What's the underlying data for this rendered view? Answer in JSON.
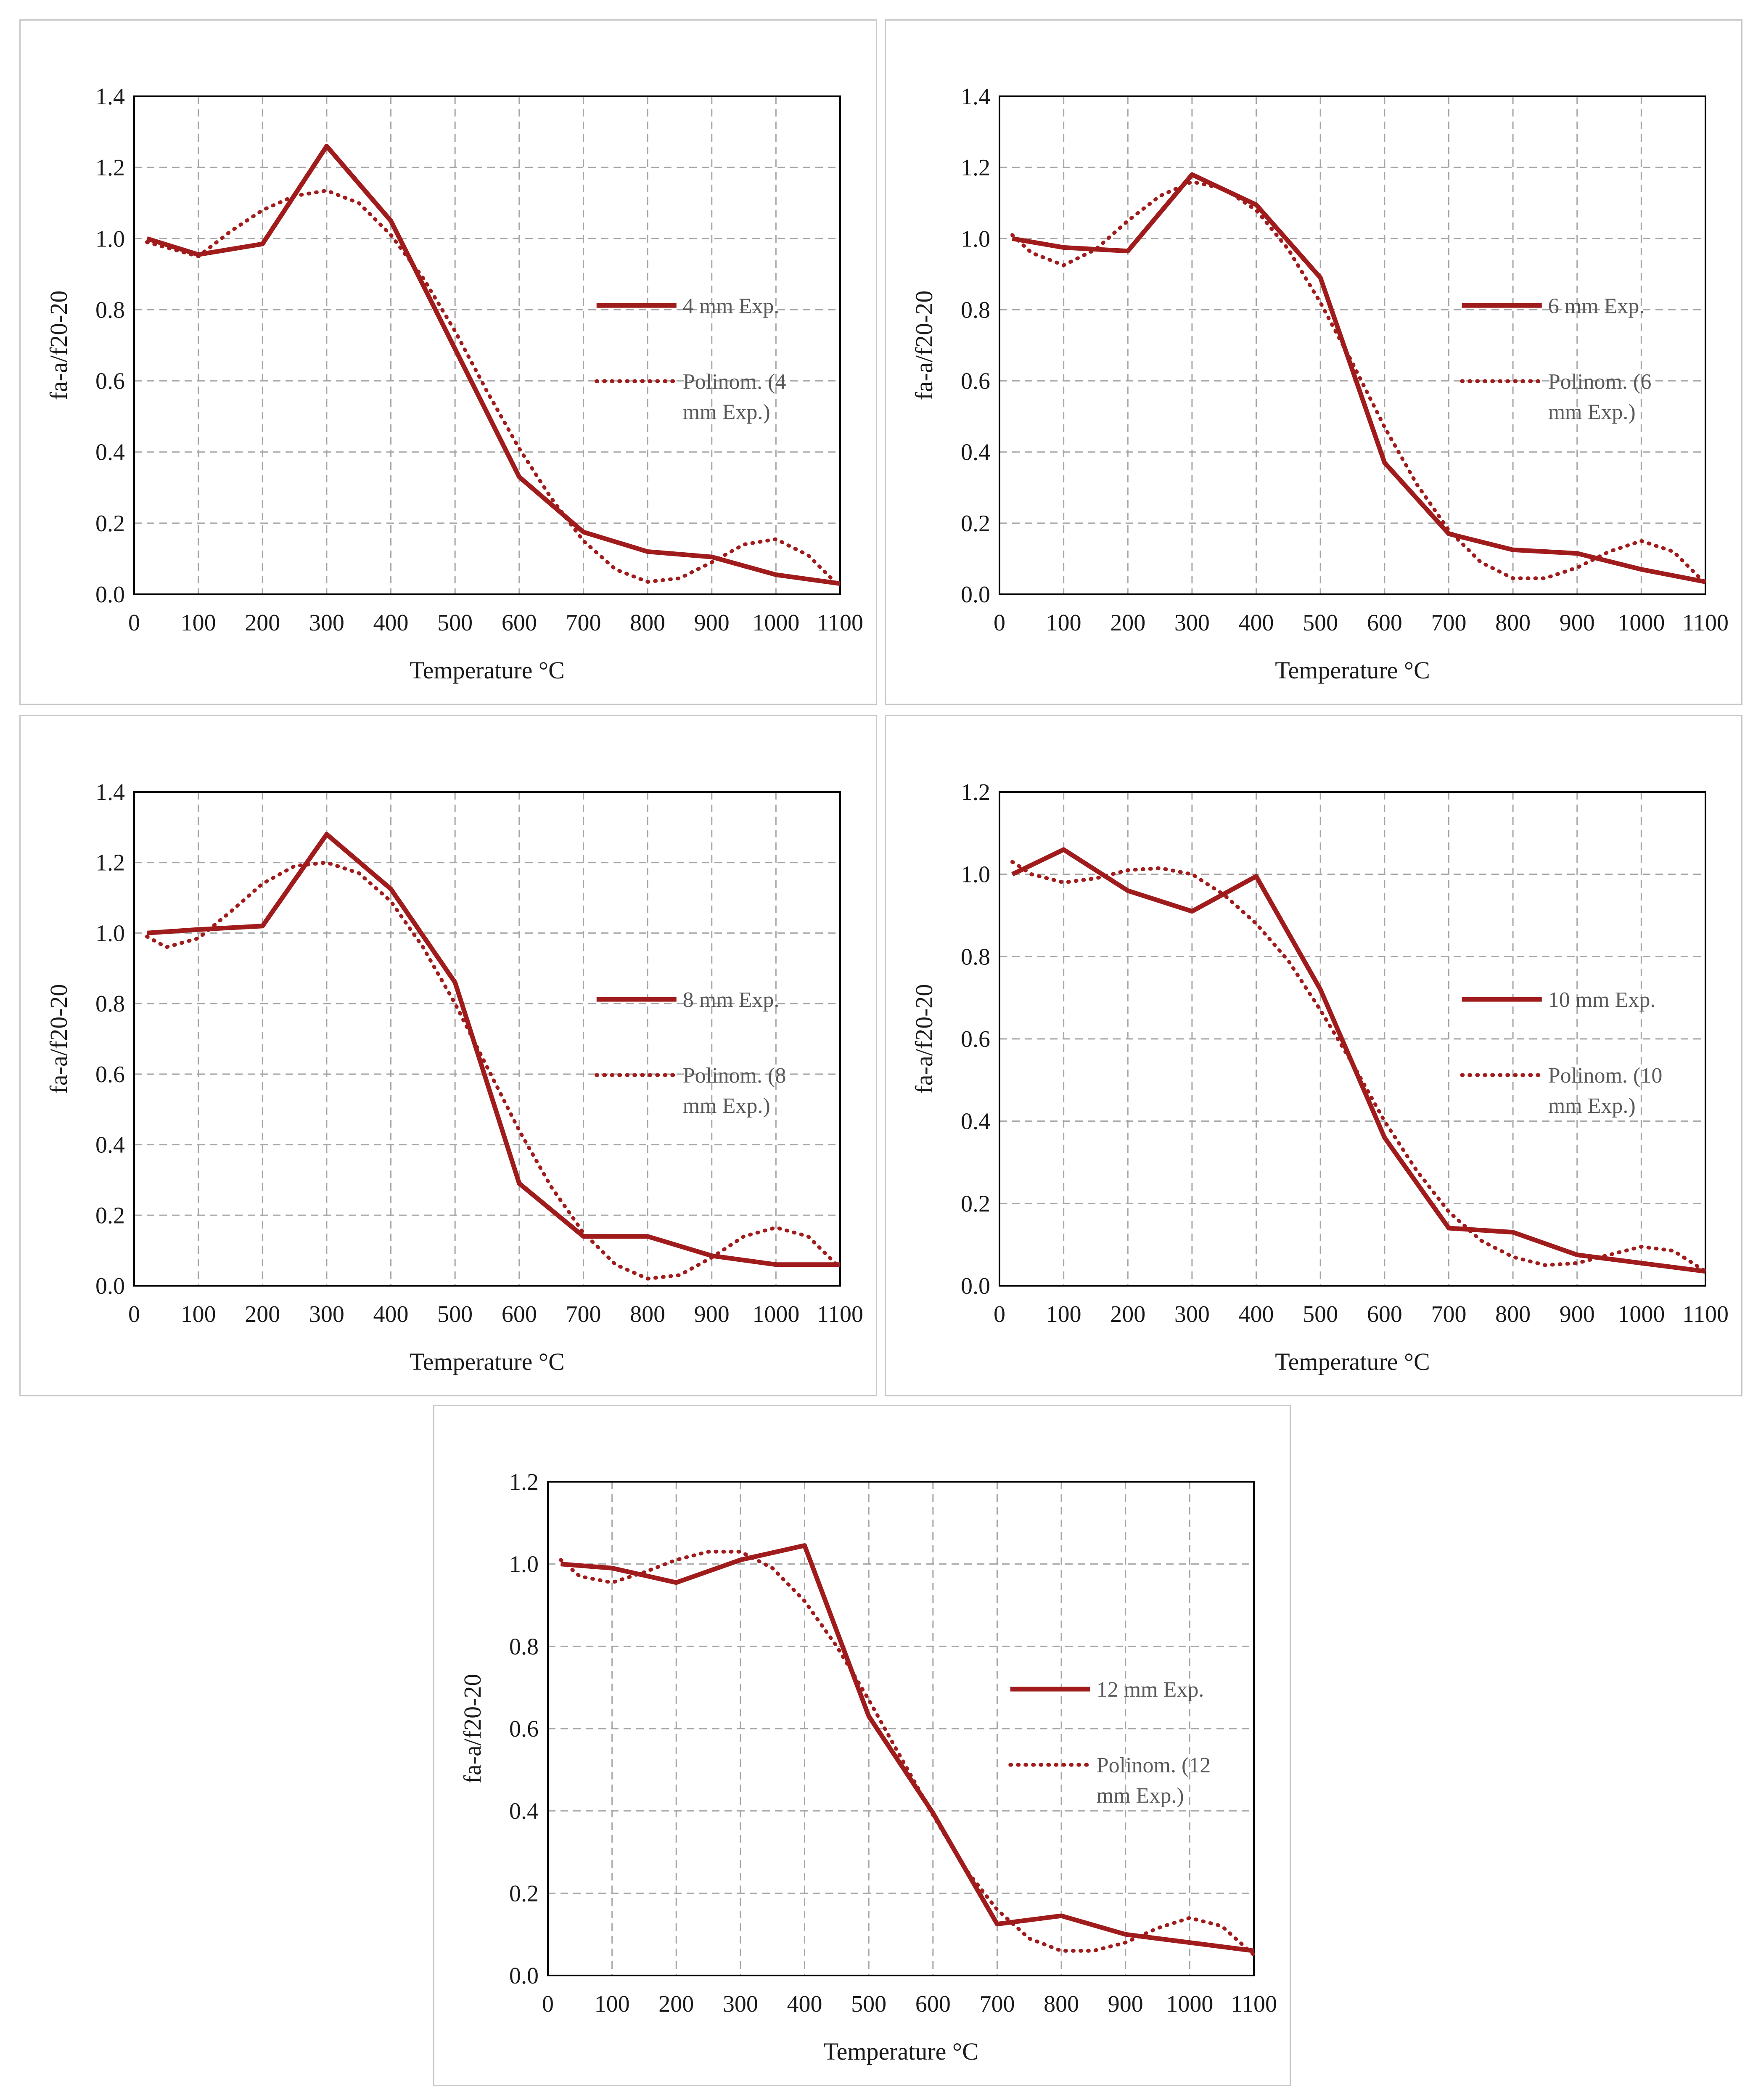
{
  "colors": {
    "series": "#a01c1c",
    "grid": "#a6a6a6",
    "axis": "#000000",
    "text": "#1a1a1a",
    "legend": "#595959"
  },
  "chart_data": [
    {
      "type": "line",
      "xlabel": "Temperature °C",
      "ylabel": "fa-a/f20-20",
      "xlim": [
        0,
        1100
      ],
      "ylim": [
        0,
        1.4
      ],
      "xticks": [
        "0",
        "100",
        "200",
        "300",
        "400",
        "500",
        "600",
        "700",
        "800",
        "900",
        "1000",
        "1100"
      ],
      "yticks": [
        "0.0",
        "0.2",
        "0.4",
        "0.6",
        "0.8",
        "1.0",
        "1.2",
        "1.4"
      ],
      "legend": [
        "4 mm Exp.",
        "Polinom. (4",
        "mm Exp.)"
      ],
      "legend_position": "right",
      "series": [
        {
          "name": "4 mm Exp.",
          "style": "solid",
          "x": [
            20,
            100,
            200,
            300,
            400,
            500,
            600,
            700,
            800,
            900,
            1000,
            1100
          ],
          "y": [
            1.0,
            0.955,
            0.985,
            1.26,
            1.05,
            0.69,
            0.33,
            0.175,
            0.12,
            0.105,
            0.055,
            0.03
          ]
        },
        {
          "name": "Polinom. (4 mm Exp.)",
          "style": "dotted",
          "x": [
            20,
            100,
            150,
            200,
            250,
            300,
            350,
            400,
            450,
            500,
            550,
            600,
            650,
            700,
            750,
            800,
            850,
            900,
            950,
            1000,
            1050,
            1100
          ],
          "y": [
            0.99,
            0.95,
            1.02,
            1.08,
            1.12,
            1.135,
            1.1,
            1.01,
            0.89,
            0.74,
            0.57,
            0.41,
            0.27,
            0.15,
            0.07,
            0.035,
            0.045,
            0.09,
            0.14,
            0.155,
            0.11,
            0.02
          ]
        }
      ]
    },
    {
      "type": "line",
      "xlabel": "Temperature °C",
      "ylabel": "fa-a/f20-20",
      "xlim": [
        0,
        1100
      ],
      "ylim": [
        0,
        1.4
      ],
      "xticks": [
        "0",
        "100",
        "200",
        "300",
        "400",
        "500",
        "600",
        "700",
        "800",
        "900",
        "1000",
        "1100"
      ],
      "yticks": [
        "0.0",
        "0.2",
        "0.4",
        "0.6",
        "0.8",
        "1.0",
        "1.2",
        "1.4"
      ],
      "legend": [
        "6 mm Exp.",
        "Polinom. (6",
        "mm Exp.)"
      ],
      "legend_position": "right",
      "series": [
        {
          "name": "6 mm Exp.",
          "style": "solid",
          "x": [
            20,
            100,
            200,
            300,
            400,
            500,
            600,
            700,
            800,
            900,
            1000,
            1100
          ],
          "y": [
            1.0,
            0.975,
            0.965,
            1.18,
            1.095,
            0.89,
            0.37,
            0.17,
            0.125,
            0.115,
            0.07,
            0.035
          ]
        },
        {
          "name": "Polinom. (6 mm Exp.)",
          "style": "dotted",
          "x": [
            20,
            50,
            100,
            150,
            200,
            250,
            300,
            350,
            400,
            450,
            500,
            550,
            600,
            650,
            700,
            750,
            800,
            850,
            900,
            950,
            1000,
            1050,
            1100
          ],
          "y": [
            1.01,
            0.96,
            0.925,
            0.97,
            1.05,
            1.12,
            1.16,
            1.14,
            1.08,
            0.97,
            0.82,
            0.65,
            0.47,
            0.31,
            0.18,
            0.09,
            0.045,
            0.045,
            0.075,
            0.12,
            0.15,
            0.12,
            0.03
          ]
        }
      ]
    },
    {
      "type": "line",
      "xlabel": "Temperature °C",
      "ylabel": "fa-a/f20-20",
      "xlim": [
        0,
        1100
      ],
      "ylim": [
        0,
        1.4
      ],
      "xticks": [
        "0",
        "100",
        "200",
        "300",
        "400",
        "500",
        "600",
        "700",
        "800",
        "900",
        "1000",
        "1100"
      ],
      "yticks": [
        "0.0",
        "0.2",
        "0.4",
        "0.6",
        "0.8",
        "1.0",
        "1.2",
        "1.4"
      ],
      "legend": [
        "8 mm Exp.",
        "Polinom. (8",
        "mm Exp.)"
      ],
      "legend_position": "right",
      "series": [
        {
          "name": "8 mm Exp.",
          "style": "solid",
          "x": [
            20,
            100,
            200,
            300,
            400,
            500,
            600,
            700,
            800,
            900,
            1000,
            1100
          ],
          "y": [
            1.0,
            1.01,
            1.02,
            1.28,
            1.125,
            0.86,
            0.29,
            0.14,
            0.14,
            0.085,
            0.06,
            0.06
          ]
        },
        {
          "name": "Polinom. (8 mm Exp.)",
          "style": "dotted",
          "x": [
            20,
            50,
            100,
            150,
            200,
            250,
            300,
            350,
            400,
            450,
            500,
            550,
            600,
            650,
            700,
            750,
            800,
            850,
            900,
            950,
            1000,
            1050,
            1100
          ],
          "y": [
            0.99,
            0.96,
            0.985,
            1.06,
            1.14,
            1.19,
            1.2,
            1.17,
            1.09,
            0.96,
            0.8,
            0.62,
            0.44,
            0.28,
            0.15,
            0.06,
            0.02,
            0.03,
            0.08,
            0.14,
            0.165,
            0.14,
            0.05
          ]
        }
      ]
    },
    {
      "type": "line",
      "xlabel": "Temperature °C",
      "ylabel": "fa-a/f20-20",
      "xlim": [
        0,
        1100
      ],
      "ylim": [
        0,
        1.2
      ],
      "xticks": [
        "0",
        "100",
        "200",
        "300",
        "400",
        "500",
        "600",
        "700",
        "800",
        "900",
        "1000",
        "1100"
      ],
      "yticks": [
        "0.0",
        "0.2",
        "0.4",
        "0.6",
        "0.8",
        "1.0",
        "1.2"
      ],
      "legend": [
        "10 mm Exp.",
        "Polinom. (10",
        "mm Exp.)"
      ],
      "legend_position": "right",
      "series": [
        {
          "name": "10 mm Exp.",
          "style": "solid",
          "x": [
            20,
            100,
            200,
            300,
            400,
            500,
            600,
            700,
            800,
            900,
            1000,
            1100
          ],
          "y": [
            1.0,
            1.06,
            0.96,
            0.91,
            0.995,
            0.72,
            0.36,
            0.14,
            0.13,
            0.075,
            0.055,
            0.035
          ]
        },
        {
          "name": "Polinom. (10 mm Exp.)",
          "style": "dotted",
          "x": [
            20,
            50,
            100,
            150,
            200,
            250,
            300,
            350,
            400,
            450,
            500,
            550,
            600,
            650,
            700,
            750,
            800,
            850,
            900,
            950,
            1000,
            1050,
            1100
          ],
          "y": [
            1.03,
            1.0,
            0.98,
            0.99,
            1.01,
            1.015,
            1.0,
            0.95,
            0.88,
            0.79,
            0.67,
            0.54,
            0.4,
            0.28,
            0.18,
            0.11,
            0.07,
            0.05,
            0.055,
            0.075,
            0.095,
            0.085,
            0.035
          ]
        }
      ]
    },
    {
      "type": "line",
      "xlabel": "Temperature °C",
      "ylabel": "fa-a/f20-20",
      "xlim": [
        0,
        1100
      ],
      "ylim": [
        0,
        1.2
      ],
      "xticks": [
        "0",
        "100",
        "200",
        "300",
        "400",
        "500",
        "600",
        "700",
        "800",
        "900",
        "1000",
        "1100"
      ],
      "yticks": [
        "0.0",
        "0.2",
        "0.4",
        "0.6",
        "0.8",
        "1.0",
        "1.2"
      ],
      "legend": [
        "12 mm Exp.",
        "Polinom. (12",
        "mm Exp.)"
      ],
      "legend_position": "right",
      "series": [
        {
          "name": "12 mm Exp.",
          "style": "solid",
          "x": [
            20,
            100,
            200,
            300,
            400,
            500,
            600,
            700,
            800,
            900,
            1000,
            1100
          ],
          "y": [
            1.0,
            0.99,
            0.955,
            1.01,
            1.045,
            0.63,
            0.395,
            0.125,
            0.145,
            0.1,
            0.08,
            0.06
          ]
        },
        {
          "name": "Polinom. (12 mm Exp.)",
          "style": "dotted",
          "x": [
            20,
            50,
            100,
            150,
            200,
            250,
            300,
            350,
            400,
            450,
            500,
            550,
            600,
            650,
            700,
            750,
            800,
            850,
            900,
            950,
            1000,
            1050,
            1100
          ],
          "y": [
            1.01,
            0.97,
            0.955,
            0.98,
            1.01,
            1.03,
            1.03,
            0.99,
            0.91,
            0.8,
            0.67,
            0.53,
            0.39,
            0.26,
            0.16,
            0.09,
            0.06,
            0.06,
            0.08,
            0.115,
            0.14,
            0.12,
            0.05
          ]
        }
      ]
    }
  ]
}
